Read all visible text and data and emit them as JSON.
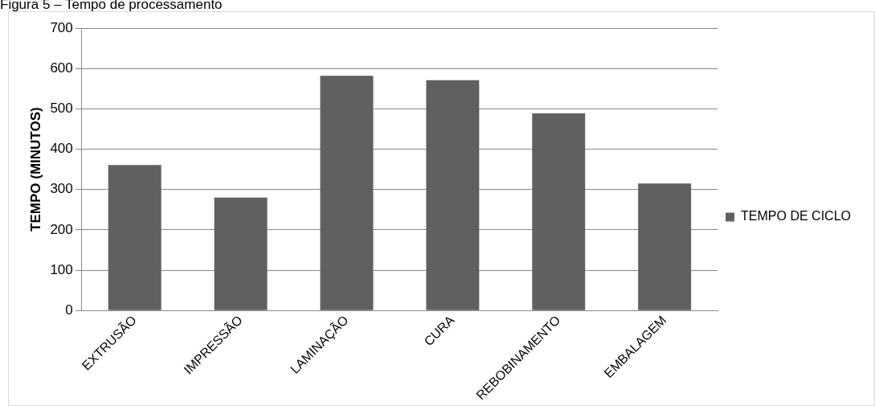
{
  "chart_data": {
    "type": "bar",
    "title": "Figura 5 – Tempo de processamento",
    "ylabel": "TEMPO (MINUTOS)",
    "categories": [
      "EXTRUSÃO",
      "IMPRESSÃO",
      "LAMINAÇÃO",
      "CURA",
      "REBOBINAMENTO",
      "EMBALAGEM"
    ],
    "series": [
      {
        "name": "TEMPO DE CICLO",
        "color": "#606060",
        "values": [
          361,
          280,
          582,
          571,
          489,
          315
        ]
      }
    ],
    "ylim": [
      0,
      700
    ],
    "yticks": [
      0,
      100,
      200,
      300,
      400,
      500,
      600,
      700
    ],
    "grid": "y",
    "legend": "right"
  }
}
